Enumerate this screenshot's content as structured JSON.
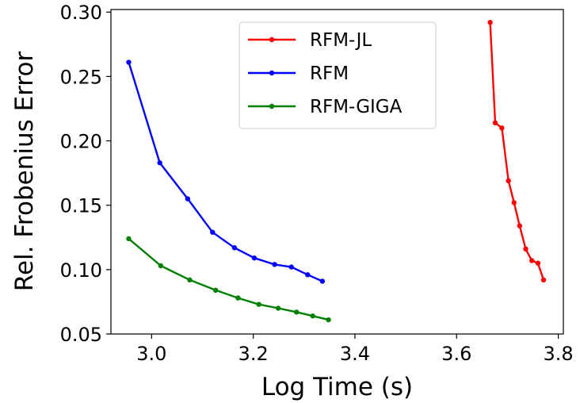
{
  "chart_data": {
    "type": "line",
    "title": "",
    "xlabel": "Log Time (s)",
    "ylabel": "Rel. Frobenius Error",
    "xlim": [
      2.92,
      3.81
    ],
    "ylim": [
      0.05,
      0.302
    ],
    "x_ticks": [
      {
        "value": 3.0,
        "label": "3.0"
      },
      {
        "value": 3.2,
        "label": "3.2"
      },
      {
        "value": 3.4,
        "label": "3.4"
      },
      {
        "value": 3.6,
        "label": "3.6"
      },
      {
        "value": 3.8,
        "label": "3.8"
      }
    ],
    "y_ticks": [
      {
        "value": 0.05,
        "label": "0.05"
      },
      {
        "value": 0.1,
        "label": "0.10"
      },
      {
        "value": 0.15,
        "label": "0.15"
      },
      {
        "value": 0.2,
        "label": "0.20"
      },
      {
        "value": 0.25,
        "label": "0.25"
      },
      {
        "value": 0.3,
        "label": "0.30"
      }
    ],
    "grid": false,
    "legend_position": "top-center",
    "series": [
      {
        "name": "RFM-JL",
        "color": "#ff0000",
        "x": [
          3.666,
          3.676,
          3.689,
          3.702,
          3.713,
          3.724,
          3.736,
          3.748,
          3.76,
          3.771
        ],
        "y": [
          0.292,
          0.214,
          0.21,
          0.169,
          0.152,
          0.134,
          0.116,
          0.107,
          0.105,
          0.092
        ]
      },
      {
        "name": "RFM",
        "color": "#0000ff",
        "x": [
          2.955,
          3.016,
          3.071,
          3.12,
          3.163,
          3.202,
          3.242,
          3.275,
          3.307,
          3.336
        ],
        "y": [
          0.261,
          0.183,
          0.155,
          0.129,
          0.117,
          0.109,
          0.104,
          0.102,
          0.096,
          0.091
        ]
      },
      {
        "name": "RFM-GIGA",
        "color": "#008000",
        "x": [
          2.955,
          3.018,
          3.075,
          3.126,
          3.17,
          3.211,
          3.249,
          3.285,
          3.317,
          3.348
        ],
        "y": [
          0.124,
          0.103,
          0.092,
          0.084,
          0.078,
          0.073,
          0.07,
          0.067,
          0.064,
          0.061
        ]
      }
    ]
  }
}
